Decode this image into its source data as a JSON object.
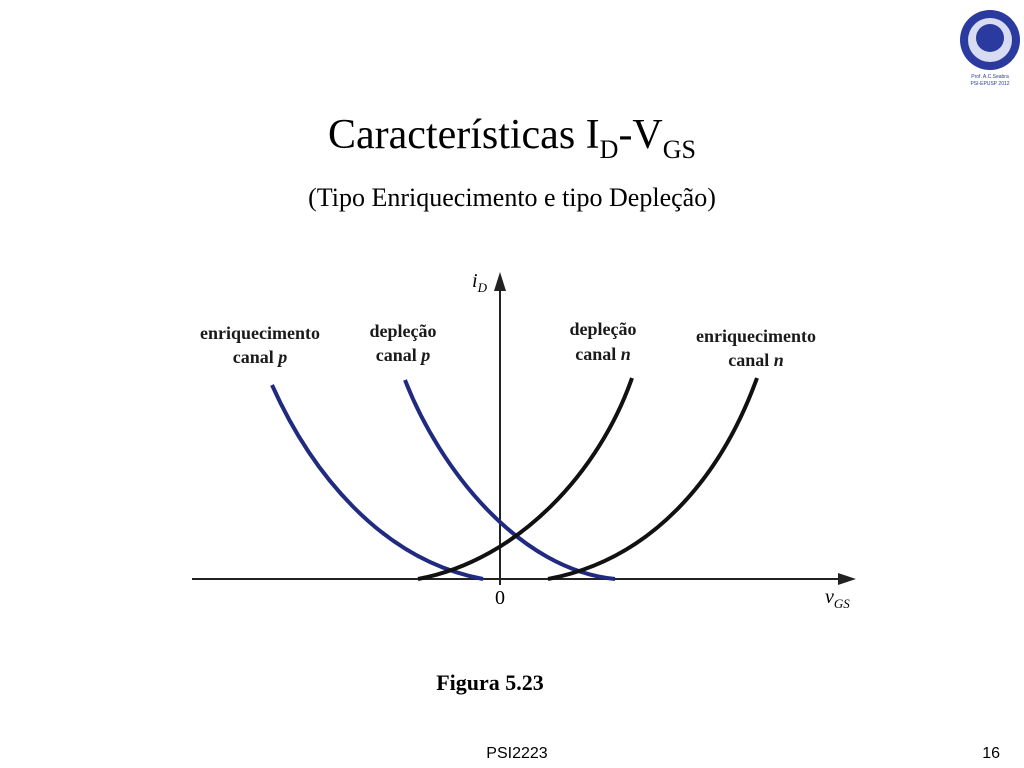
{
  "header": {
    "title": {
      "main": "Características I",
      "sub1": "D",
      "mid": "-V",
      "sub2": "GS"
    },
    "subtitle": "(Tipo Enriquecimento e tipo Depleção)",
    "logo": {
      "line1": "Prof. A.C.Seabra",
      "line2": "PSI-EPUSP 2012"
    }
  },
  "figure": {
    "y_axis": {
      "symbol": "i",
      "subscript": "D"
    },
    "x_axis": {
      "symbol": "v",
      "subscript": "GS"
    },
    "origin": "0",
    "curves": [
      {
        "line1": "enriquecimento",
        "line2": "canal",
        "var": "p"
      },
      {
        "line1": "depleção",
        "line2": "canal",
        "var": "p"
      },
      {
        "line1": "depleção",
        "line2": "canal",
        "var": "n"
      },
      {
        "line1": "enriquecimento",
        "line2": "canal",
        "var": "n"
      }
    ],
    "caption": "Figura 5.23"
  },
  "footer": {
    "course": "PSI2223",
    "page": "16"
  }
}
